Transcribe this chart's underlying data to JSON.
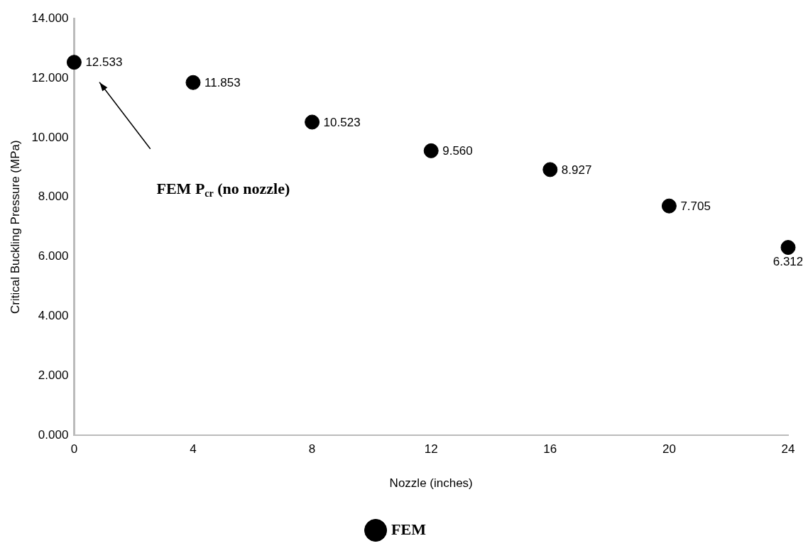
{
  "chart_data": {
    "type": "scatter",
    "xlabel": "Nozzle (inches)",
    "ylabel": "Critical Buckling Pressure (MPa)",
    "x": [
      0,
      4,
      8,
      12,
      16,
      20,
      24
    ],
    "series": [
      {
        "name": "FEM",
        "color": "#000000",
        "values": [
          12.533,
          11.853,
          10.523,
          9.56,
          8.927,
          7.705,
          6.312
        ],
        "value_labels": [
          "12.533",
          "11.853",
          "10.523",
          "9.560",
          "8.927",
          "7.705",
          "6.312"
        ]
      }
    ],
    "xlim": [
      0,
      24
    ],
    "xticks": [
      0,
      4,
      8,
      12,
      16,
      20,
      24
    ],
    "ylim": [
      0,
      14
    ],
    "yticks": [
      {
        "value": 0,
        "label": "0.000"
      },
      {
        "value": 2,
        "label": "2.000"
      },
      {
        "value": 4,
        "label": "4.000"
      },
      {
        "value": 6,
        "label": "6.000"
      },
      {
        "value": 8,
        "label": "8.000"
      },
      {
        "value": 10,
        "label": "10.000"
      },
      {
        "value": 12,
        "label": "12.000"
      },
      {
        "value": 14,
        "label": "14.000"
      }
    ],
    "annotations": [
      "FEM P$_{cr}$ (no nozzle)"
    ],
    "grid": false,
    "legend": "bottom",
    "marker": "circle"
  }
}
